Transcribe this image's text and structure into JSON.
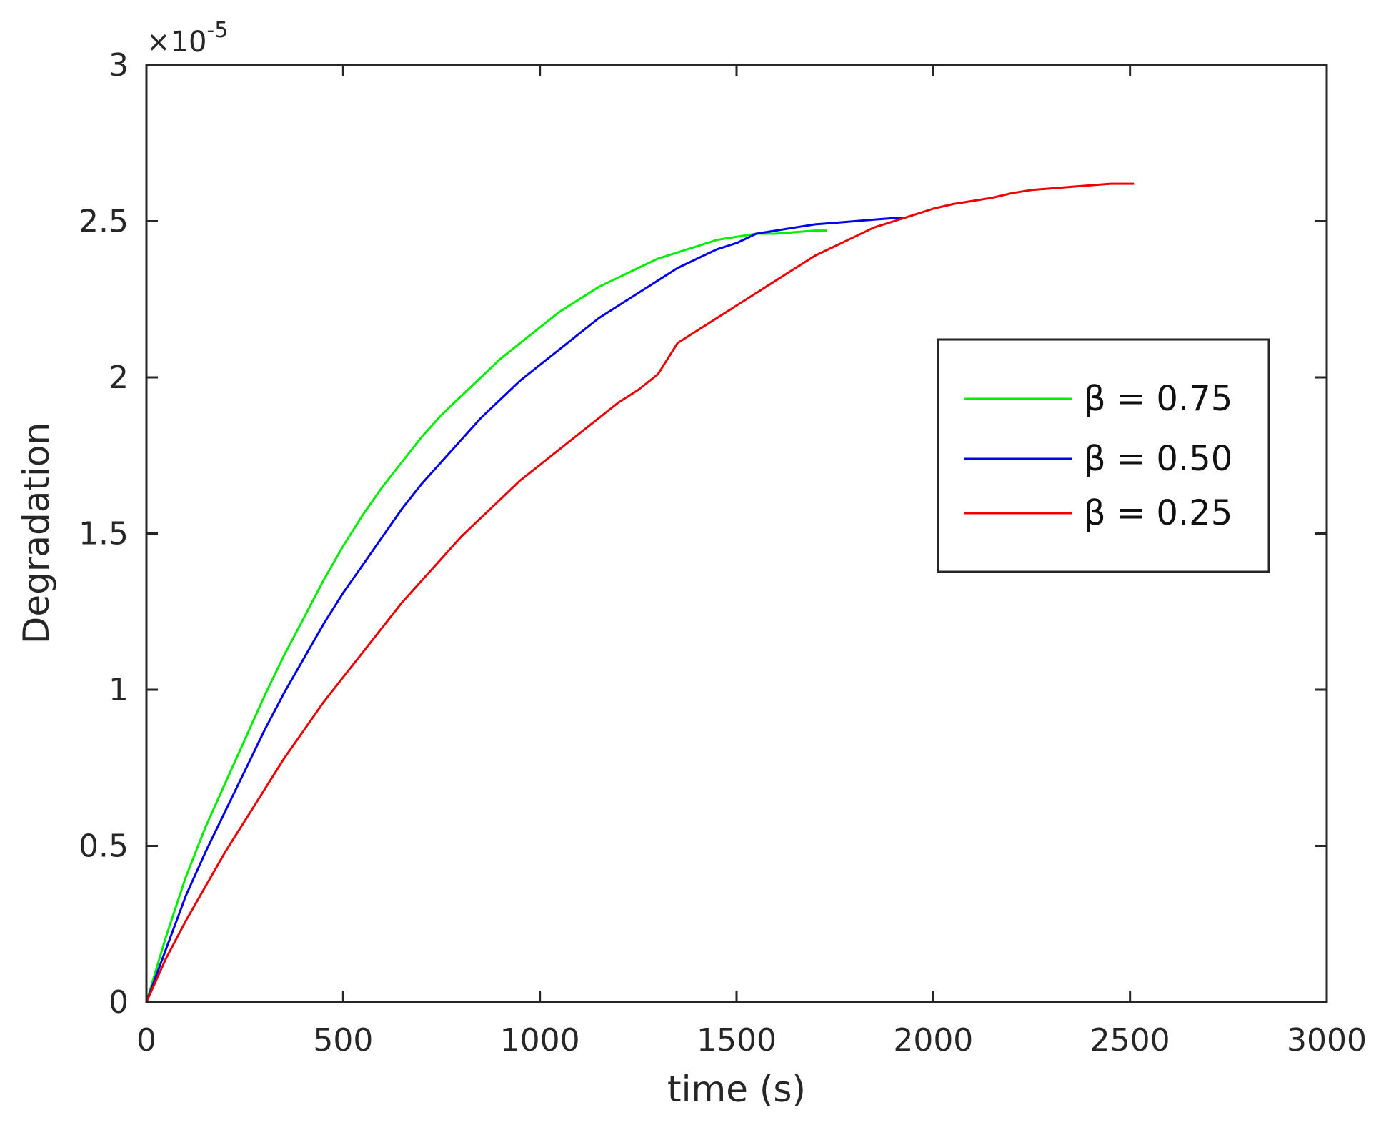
{
  "chart_data": {
    "type": "line",
    "xlabel": "time (s)",
    "ylabel": "Degradation",
    "y_exponent_label": "×10",
    "y_exponent_power": "-5",
    "xlim": [
      0,
      3000
    ],
    "ylim": [
      0,
      3
    ],
    "x_ticks": [
      0,
      500,
      1000,
      1500,
      2000,
      2500,
      3000
    ],
    "x_tick_labels": [
      "0",
      "500",
      "1000",
      "1500",
      "2000",
      "2500",
      "3000"
    ],
    "y_ticks": [
      0,
      0.5,
      1,
      1.5,
      2,
      2.5,
      3
    ],
    "y_tick_labels": [
      "0",
      "0.5",
      "1",
      "1.5",
      "2",
      "2.5",
      "3"
    ],
    "grid": false,
    "box": true,
    "legend_position": "right",
    "series": [
      {
        "name": "β = 0.75",
        "color": "#00ee00",
        "x": [
          0,
          50,
          100,
          150,
          200,
          250,
          300,
          350,
          400,
          450,
          500,
          550,
          600,
          650,
          700,
          750,
          800,
          850,
          900,
          950,
          1000,
          1050,
          1100,
          1150,
          1200,
          1250,
          1300,
          1350,
          1400,
          1450,
          1500,
          1550,
          1600,
          1650,
          1700,
          1730
        ],
        "y": [
          0,
          0.21,
          0.4,
          0.56,
          0.7,
          0.84,
          0.98,
          1.11,
          1.23,
          1.35,
          1.46,
          1.56,
          1.65,
          1.73,
          1.81,
          1.88,
          1.94,
          2.0,
          2.06,
          2.11,
          2.16,
          2.21,
          2.25,
          2.29,
          2.32,
          2.35,
          2.38,
          2.4,
          2.42,
          2.44,
          2.45,
          2.46,
          2.46,
          2.465,
          2.47,
          2.47
        ]
      },
      {
        "name": "β = 0.50",
        "color": "#0000ee",
        "x": [
          0,
          50,
          100,
          150,
          200,
          250,
          300,
          350,
          400,
          450,
          500,
          550,
          600,
          650,
          700,
          750,
          800,
          850,
          900,
          950,
          1000,
          1050,
          1100,
          1150,
          1200,
          1250,
          1300,
          1350,
          1400,
          1450,
          1500,
          1550,
          1600,
          1650,
          1700,
          1750,
          1800,
          1850,
          1900,
          1930
        ],
        "y": [
          0,
          0.17,
          0.34,
          0.48,
          0.61,
          0.74,
          0.87,
          0.99,
          1.1,
          1.21,
          1.31,
          1.4,
          1.49,
          1.58,
          1.66,
          1.73,
          1.8,
          1.87,
          1.93,
          1.99,
          2.04,
          2.09,
          2.14,
          2.19,
          2.23,
          2.27,
          2.31,
          2.35,
          2.38,
          2.41,
          2.43,
          2.46,
          2.47,
          2.48,
          2.49,
          2.495,
          2.5,
          2.505,
          2.51,
          2.51
        ]
      },
      {
        "name": "β = 0.25",
        "color": "#ee0000",
        "x": [
          0,
          50,
          100,
          150,
          200,
          250,
          300,
          350,
          400,
          450,
          500,
          550,
          600,
          650,
          700,
          750,
          800,
          850,
          900,
          950,
          1000,
          1050,
          1100,
          1150,
          1200,
          1250,
          1300,
          1350,
          1400,
          1450,
          1500,
          1550,
          1600,
          1650,
          1700,
          1750,
          1800,
          1850,
          1900,
          1950,
          2000,
          2050,
          2100,
          2150,
          2200,
          2250,
          2300,
          2350,
          2400,
          2450,
          2510
        ],
        "y": [
          0,
          0.14,
          0.26,
          0.37,
          0.48,
          0.58,
          0.68,
          0.78,
          0.87,
          0.96,
          1.04,
          1.12,
          1.2,
          1.28,
          1.35,
          1.42,
          1.49,
          1.55,
          1.61,
          1.67,
          1.72,
          1.77,
          1.82,
          1.87,
          1.92,
          1.96,
          2.01,
          2.11,
          2.15,
          2.19,
          2.23,
          2.27,
          2.31,
          2.35,
          2.39,
          2.42,
          2.45,
          2.48,
          2.5,
          2.52,
          2.54,
          2.555,
          2.565,
          2.575,
          2.59,
          2.6,
          2.605,
          2.61,
          2.615,
          2.62,
          2.62
        ]
      }
    ]
  }
}
